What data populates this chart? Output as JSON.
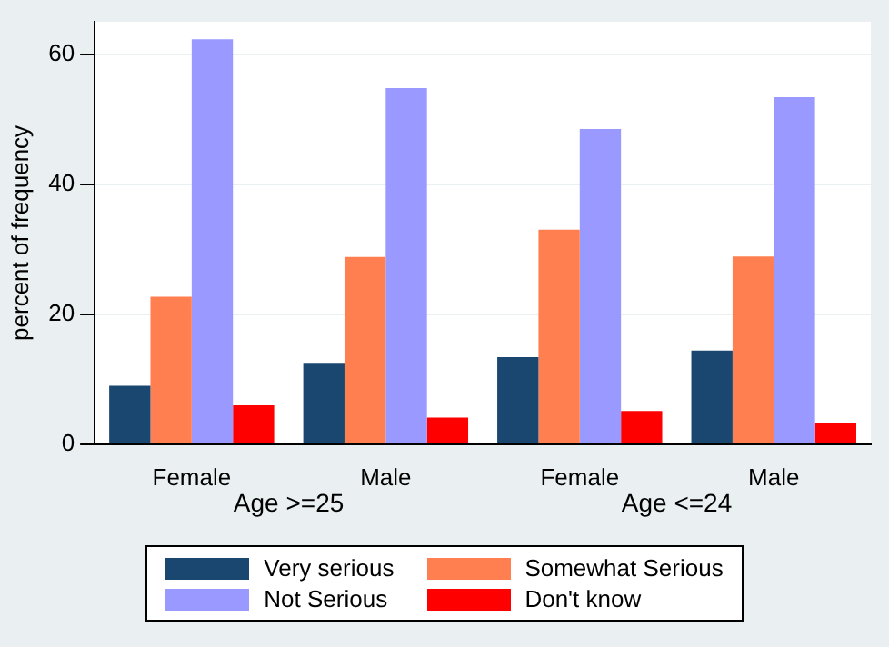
{
  "chart_data": {
    "type": "bar",
    "ylabel": "percent of frequency",
    "categories": [
      "Female",
      "Male",
      "Female",
      "Male"
    ],
    "series": [
      {
        "name": "Very serious",
        "color": "#1a476f",
        "values": [
          9.0,
          12.4,
          13.4,
          14.4
        ]
      },
      {
        "name": "Somewhat Serious",
        "color": "#ff7f50",
        "values": [
          22.7,
          28.8,
          33.0,
          28.9
        ]
      },
      {
        "name": "Not Serious",
        "color": "#9999ff",
        "values": [
          62.3,
          54.8,
          48.5,
          53.4
        ]
      },
      {
        "name": "Don't know",
        "color": "#ff0000",
        "values": [
          6.0,
          4.1,
          5.1,
          3.3
        ]
      }
    ],
    "annotations": [
      "Age >=25",
      "Age <=24"
    ],
    "ylim": [
      0,
      65
    ],
    "yticks": [
      0,
      20,
      40,
      60
    ],
    "grid": "y",
    "legend": "bottom"
  }
}
